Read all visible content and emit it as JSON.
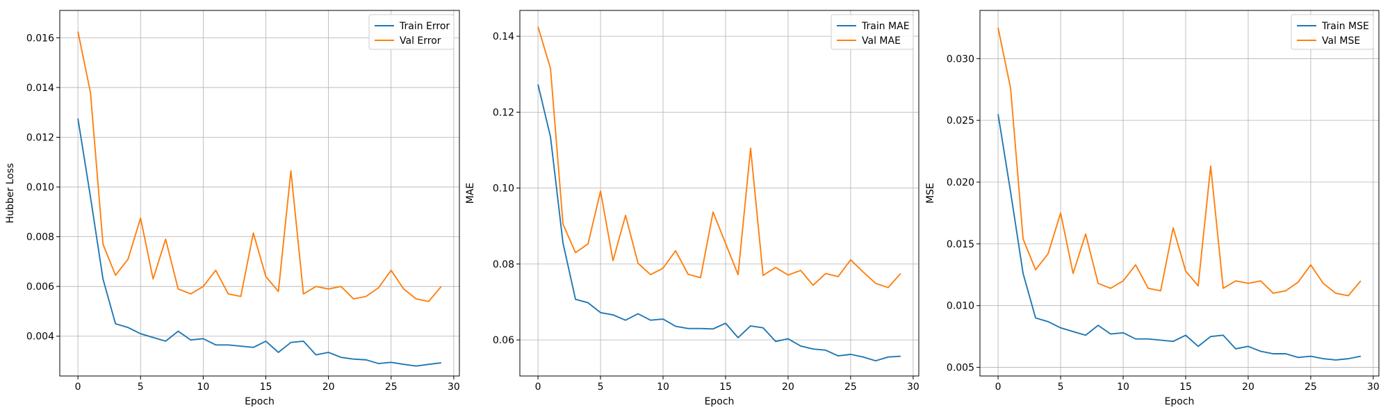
{
  "chart_data": [
    {
      "type": "line",
      "xlabel": "Epoch",
      "ylabel": "Hubber Loss",
      "xlim": [
        -1.45,
        30.45
      ],
      "ylim": [
        0.0024,
        0.0171
      ],
      "xticks": [
        0,
        5,
        10,
        15,
        20,
        25,
        30
      ],
      "yticks": [
        0.004,
        0.006,
        0.008,
        0.01,
        0.012,
        0.014,
        0.016
      ],
      "ytick_labels": [
        "0.004",
        "0.006",
        "0.008",
        "0.010",
        "0.012",
        "0.014",
        "0.016"
      ],
      "grid": true,
      "legend_position": "upper right",
      "x": [
        0,
        1,
        2,
        3,
        4,
        5,
        6,
        7,
        8,
        9,
        10,
        11,
        12,
        13,
        14,
        15,
        16,
        17,
        18,
        19,
        20,
        21,
        22,
        23,
        24,
        25,
        26,
        27,
        28,
        29
      ],
      "series": [
        {
          "name": "Train Error",
          "color": "#1f77b4",
          "values": [
            0.01275,
            0.0096,
            0.0063,
            0.0045,
            0.00435,
            0.0041,
            0.00395,
            0.0038,
            0.0042,
            0.00385,
            0.0039,
            0.00365,
            0.00365,
            0.0036,
            0.00355,
            0.0038,
            0.00335,
            0.00375,
            0.0038,
            0.00325,
            0.00335,
            0.00315,
            0.00308,
            0.00305,
            0.0029,
            0.00295,
            0.00287,
            0.0028,
            0.00287,
            0.00293
          ]
        },
        {
          "name": "Val Error",
          "color": "#ff7f0e",
          "values": [
            0.01625,
            0.0138,
            0.0077,
            0.00645,
            0.0071,
            0.00875,
            0.0063,
            0.0079,
            0.0059,
            0.0057,
            0.006,
            0.00665,
            0.0057,
            0.0056,
            0.00815,
            0.0064,
            0.0058,
            0.01065,
            0.0057,
            0.006,
            0.0059,
            0.006,
            0.0055,
            0.0056,
            0.00595,
            0.00665,
            0.0059,
            0.0055,
            0.0054,
            0.006
          ]
        }
      ]
    },
    {
      "type": "line",
      "xlabel": "Epoch",
      "ylabel": "MAE",
      "xlim": [
        -1.45,
        30.45
      ],
      "ylim": [
        0.0505,
        0.1468
      ],
      "xticks": [
        0,
        5,
        10,
        15,
        20,
        25,
        30
      ],
      "yticks": [
        0.06,
        0.08,
        0.1,
        0.12,
        0.14
      ],
      "ytick_labels": [
        "0.06",
        "0.08",
        "0.10",
        "0.12",
        "0.14"
      ],
      "grid": true,
      "legend_position": "upper right",
      "x": [
        0,
        1,
        2,
        3,
        4,
        5,
        6,
        7,
        8,
        9,
        10,
        11,
        12,
        13,
        14,
        15,
        16,
        17,
        18,
        19,
        20,
        21,
        22,
        23,
        24,
        25,
        26,
        27,
        28,
        29
      ],
      "series": [
        {
          "name": "Train MAE",
          "color": "#1f77b4",
          "values": [
            0.1273,
            0.1135,
            0.0855,
            0.0707,
            0.0698,
            0.0672,
            0.0666,
            0.0652,
            0.0669,
            0.0652,
            0.0655,
            0.0636,
            0.063,
            0.063,
            0.0629,
            0.0644,
            0.0606,
            0.0637,
            0.0632,
            0.0596,
            0.0603,
            0.0584,
            0.0576,
            0.0573,
            0.0558,
            0.0562,
            0.0555,
            0.0545,
            0.0555,
            0.0557
          ]
        },
        {
          "name": "Val MAE",
          "color": "#ff7f0e",
          "values": [
            0.1425,
            0.1315,
            0.0905,
            0.083,
            0.0853,
            0.0992,
            0.0809,
            0.0928,
            0.0802,
            0.0772,
            0.0789,
            0.0835,
            0.0773,
            0.0764,
            0.0937,
            0.0854,
            0.0772,
            0.1105,
            0.077,
            0.0791,
            0.0771,
            0.0783,
            0.0744,
            0.0775,
            0.0767,
            0.0811,
            0.0779,
            0.0749,
            0.0738,
            0.0775
          ]
        }
      ]
    },
    {
      "type": "line",
      "xlabel": "Epoch",
      "ylabel": "MSE",
      "xlim": [
        -1.45,
        30.45
      ],
      "ylim": [
        0.0043,
        0.0339
      ],
      "xticks": [
        0,
        5,
        10,
        15,
        20,
        25,
        30
      ],
      "yticks": [
        0.005,
        0.01,
        0.015,
        0.02,
        0.025,
        0.03
      ],
      "ytick_labels": [
        "0.005",
        "0.010",
        "0.015",
        "0.020",
        "0.025",
        "0.030"
      ],
      "grid": true,
      "legend_position": "upper right",
      "x": [
        0,
        1,
        2,
        3,
        4,
        5,
        6,
        7,
        8,
        9,
        10,
        11,
        12,
        13,
        14,
        15,
        16,
        17,
        18,
        19,
        20,
        21,
        22,
        23,
        24,
        25,
        26,
        27,
        28,
        29
      ],
      "series": [
        {
          "name": "Train MSE",
          "color": "#1f77b4",
          "values": [
            0.0255,
            0.0192,
            0.0126,
            0.009,
            0.0087,
            0.0082,
            0.0079,
            0.0076,
            0.0084,
            0.0077,
            0.0078,
            0.0073,
            0.0073,
            0.0072,
            0.0071,
            0.0076,
            0.0067,
            0.0075,
            0.0076,
            0.0065,
            0.0067,
            0.0063,
            0.0061,
            0.0061,
            0.0058,
            0.0059,
            0.0057,
            0.0056,
            0.0057,
            0.0059
          ]
        },
        {
          "name": "Val MSE",
          "color": "#ff7f0e",
          "values": [
            0.0325,
            0.0276,
            0.0154,
            0.0129,
            0.0142,
            0.0175,
            0.0126,
            0.0158,
            0.0118,
            0.0114,
            0.012,
            0.0133,
            0.0114,
            0.0112,
            0.0163,
            0.0128,
            0.0116,
            0.0213,
            0.0114,
            0.012,
            0.0118,
            0.012,
            0.011,
            0.0112,
            0.0119,
            0.0133,
            0.0118,
            0.011,
            0.0108,
            0.012
          ]
        }
      ]
    }
  ]
}
